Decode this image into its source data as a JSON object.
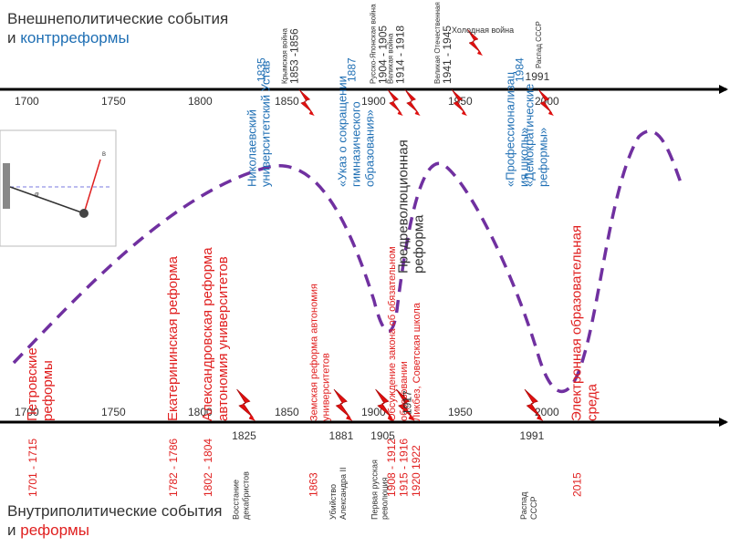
{
  "titles": {
    "foreign_line1": "Внешнеполитические события",
    "foreign_and": "и ",
    "foreign_accent": "контрреформы",
    "domestic_line1": "Внутриполитические события",
    "domestic_and": "и ",
    "domestic_accent": "реформы"
  },
  "colors": {
    "axis": "#000000",
    "red": "#e02020",
    "blue": "#1f6fb4",
    "curve": "#7030a0",
    "dark": "#333333"
  },
  "scale": {
    "year_min": 1700,
    "year_max": 2000
  },
  "axes": {
    "top_ticks": [
      "1700",
      "1750",
      "1800",
      "1850",
      "1900",
      "1950",
      "2000"
    ],
    "bottom_ticks": [
      "1700",
      "1750",
      "1800",
      "1850",
      "1900",
      "1950",
      "2000"
    ]
  },
  "foreign_events": [
    {
      "year": 1853,
      "label": "Крымская война",
      "date": "1853-1856",
      "date_text": "1853 -1856"
    },
    {
      "year": 1904,
      "label": "Русско-Японская война",
      "date": "1904-1905",
      "date_text": "1904 - 1905"
    },
    {
      "year": 1914,
      "label": "Великая война",
      "date": "1914-1918",
      "date_text": "1914 - 1918"
    },
    {
      "year": 1941,
      "label": "Великая Отечественная война",
      "date": "1941-1945",
      "date_text": "1941 - 1945"
    },
    {
      "year": 1950,
      "label": "Холодная война",
      "date": "",
      "date_text": ""
    },
    {
      "year": 1991,
      "label": "Распад СССР",
      "date": "1991",
      "date_text": "1991"
    }
  ],
  "counter_reforms": [
    {
      "year": 1835,
      "label_lines": [
        "Николаевский",
        "университетский Устав"
      ],
      "date_text": "1835"
    },
    {
      "year": 1887,
      "label_lines": [
        "«Указ о сокращении",
        "гимназического",
        "образования»"
      ],
      "date_text": "1887"
    },
    {
      "year": 1984,
      "label_lines": [
        "«Профессионализац",
        "ия школы»"
      ],
      "date_text": "1984"
    },
    {
      "year": 1995,
      "label_lines": [
        "«Демократические",
        "реформы»"
      ],
      "date_text": ""
    }
  ],
  "reforms": [
    {
      "year": 1701,
      "label_lines": [
        "Петровские",
        "реформы"
      ],
      "date_text": "1701 - 1715"
    },
    {
      "year": 1782,
      "label_lines": [
        "Екатерининская реформа"
      ],
      "date_text": "1782 - 1786"
    },
    {
      "year": 1802,
      "label_lines": [
        "Александровская реформа",
        "автономия университетов"
      ],
      "date_text": "1802 - 1804"
    },
    {
      "year": 1863,
      "label_lines": [
        "Земская реформа автономия",
        "университетов"
      ],
      "date_text": "1863"
    },
    {
      "year": 1908,
      "label_lines": [
        "Обсуждение закона об обязательном",
        "образовании"
      ],
      "date_text": "1908 - 1912"
    },
    {
      "year": 1915,
      "label_lines": [
        "Предреволюционная",
        "реформа"
      ],
      "date_text": "1915 - 1916"
    },
    {
      "year": 1922,
      "label_lines": [
        "Ликбез, Советская школа"
      ],
      "date_text": "1920 1922"
    },
    {
      "year": 2015,
      "label_lines": [
        "Электронная образовательная",
        "среда"
      ],
      "date_text": "2015"
    }
  ],
  "domestic_events": [
    {
      "year": 1825,
      "label_lines": [
        "Восстание",
        "декабристов"
      ],
      "date_text": "1825"
    },
    {
      "year": 1881,
      "label_lines": [
        "Убийство",
        "Александра II"
      ],
      "date_text": "1881"
    },
    {
      "year": 1905,
      "label_lines": [
        "Первая русская",
        "революция"
      ],
      "date_text": "1905"
    },
    {
      "year": 1917,
      "label_lines": [],
      "date_text": "1917"
    },
    {
      "year": 1991,
      "label_lines": [
        "Распад",
        "СССР"
      ],
      "date_text": "1991"
    }
  ],
  "pendulum_icon": "pendulum-diagram-icon",
  "lightning_icon": "lightning-bolt-icon"
}
